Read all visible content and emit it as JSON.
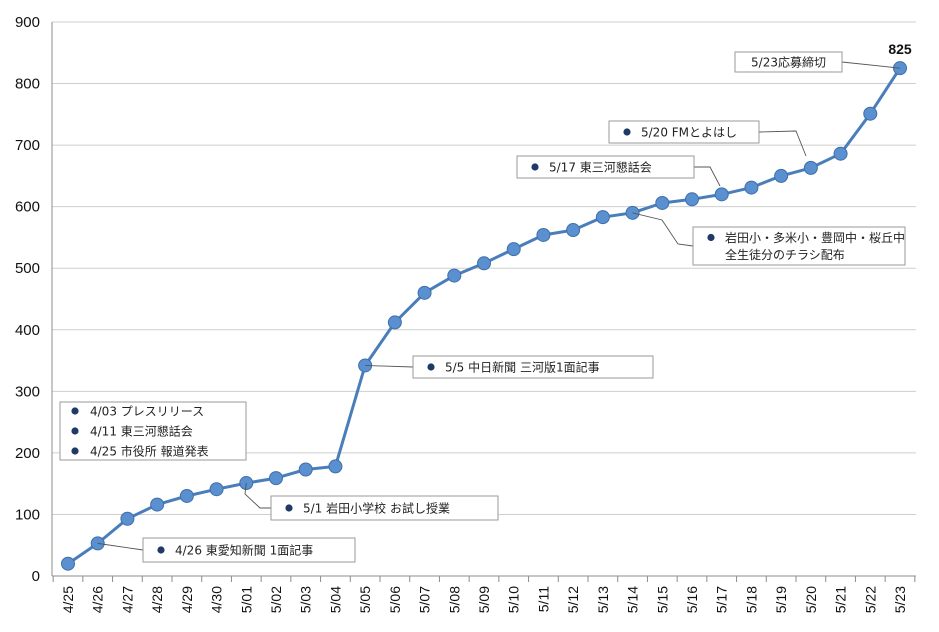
{
  "chart_data": {
    "type": "line",
    "title": "",
    "xlabel": "",
    "ylabel": "",
    "ylim": [
      0,
      900
    ],
    "yticks": [
      "0",
      "100",
      "200",
      "300",
      "400",
      "500",
      "600",
      "700",
      "800",
      "900"
    ],
    "grid": "horizontal",
    "legend": "none",
    "colors": {
      "line": "#4a7ebb",
      "marker": "#5a8fd0",
      "annotation_dot": "#1f3a66",
      "box_border": "#9a9a9a"
    },
    "categories": [
      "4/25",
      "4/26",
      "4/27",
      "4/28",
      "4/29",
      "4/30",
      "5/01",
      "5/02",
      "5/03",
      "5/04",
      "5/05",
      "5/06",
      "5/07",
      "5/08",
      "5/09",
      "5/10",
      "5/11",
      "5/12",
      "5/13",
      "5/14",
      "5/15",
      "5/16",
      "5/17",
      "5/18",
      "5/19",
      "5/20",
      "5/21",
      "5/22",
      "5/23"
    ],
    "values": [
      20,
      53,
      93,
      116,
      130,
      141,
      151,
      159,
      173,
      178,
      342,
      412,
      460,
      488,
      508,
      531,
      554,
      562,
      583,
      590,
      606,
      612,
      620,
      631,
      650,
      663,
      686,
      751,
      825
    ],
    "end_value_label": "825",
    "annotations": [
      {
        "id": "list",
        "lines": [
          "4/03 プレスリリース",
          "4/11 東三河懇話会",
          "4/25 市役所 報道発表"
        ],
        "bullet": true
      },
      {
        "id": "a426",
        "lines": [
          "4/26 東愛知新聞 1面記事"
        ],
        "bullet": true,
        "target": 1
      },
      {
        "id": "a51",
        "lines": [
          "5/1 岩田小学校 お試し授業"
        ],
        "bullet": true,
        "target": 6
      },
      {
        "id": "a55",
        "lines": [
          "5/5 中日新聞 三河版1面記事"
        ],
        "bullet": true,
        "target": 10
      },
      {
        "id": "a514",
        "lines": [
          "岩田小・多米小・豊岡中・桜丘中",
          "全生徒分のチラシ配布"
        ],
        "bullet": true,
        "target": 19
      },
      {
        "id": "a517",
        "lines": [
          "5/17 東三河懇話会"
        ],
        "bullet": true,
        "target": 22
      },
      {
        "id": "a520",
        "lines": [
          "5/20 FMとよはし"
        ],
        "bullet": true,
        "target": 25
      },
      {
        "id": "a523",
        "lines": [
          "5/23応募締切"
        ],
        "bullet": false,
        "target": 28
      }
    ]
  }
}
